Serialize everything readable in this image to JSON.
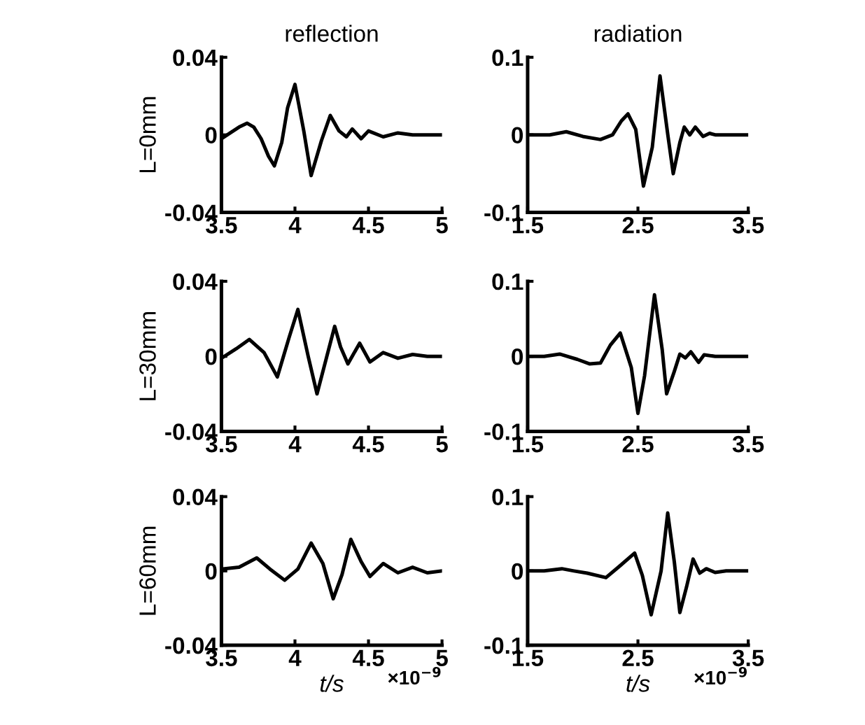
{
  "chart_data": [
    {
      "type": "line",
      "title": "reflection",
      "ylabel": "L=0mm",
      "xlim": [
        3.5,
        5
      ],
      "xticks": [
        3.5,
        4,
        4.5,
        5
      ],
      "ylim": [
        -0.04,
        0.04
      ],
      "yticks": [
        -0.04,
        0,
        0.04
      ],
      "grid": false,
      "series": [
        {
          "color": "#000000",
          "x": [
            3.5,
            3.56,
            3.62,
            3.675,
            3.72,
            3.77,
            3.82,
            3.86,
            3.91,
            3.95,
            4.0,
            4.06,
            4.11,
            4.18,
            4.24,
            4.3,
            4.35,
            4.39,
            4.45,
            4.5,
            4.6,
            4.7,
            4.8,
            4.9,
            5.0
          ],
          "values": [
            -0.002,
            0.001,
            0.004,
            0.006,
            0.004,
            -0.002,
            -0.011,
            -0.016,
            -0.004,
            0.014,
            0.026,
            0.002,
            -0.021,
            -0.003,
            0.01,
            0.002,
            -0.001,
            0.003,
            -0.002,
            0.002,
            -0.001,
            0.001,
            0,
            0,
            0
          ]
        }
      ]
    },
    {
      "type": "line",
      "title": "radiation",
      "xlim": [
        1.5,
        3.5
      ],
      "xticks": [
        1.5,
        2.5,
        3.5
      ],
      "ylim": [
        -0.1,
        0.1
      ],
      "yticks": [
        -0.1,
        0,
        0.1
      ],
      "grid": false,
      "series": [
        {
          "color": "#000000",
          "x": [
            1.5,
            1.7,
            1.85,
            2.0,
            2.16,
            2.27,
            2.35,
            2.41,
            2.48,
            2.55,
            2.63,
            2.7,
            2.77,
            2.82,
            2.88,
            2.92,
            2.97,
            3.02,
            3.09,
            3.15,
            3.2,
            3.3,
            3.5
          ],
          "values": [
            0,
            0,
            0.004,
            -0.002,
            -0.006,
            0,
            0.018,
            0.027,
            0.007,
            -0.066,
            -0.016,
            0.076,
            0.001,
            -0.05,
            -0.01,
            0.01,
            0,
            0.01,
            -0.002,
            0.002,
            0,
            0,
            0
          ]
        }
      ]
    },
    {
      "type": "line",
      "ylabel": "L=30mm",
      "xlim": [
        3.5,
        5
      ],
      "xticks": [
        3.5,
        4,
        4.5,
        5
      ],
      "ylim": [
        -0.04,
        0.04
      ],
      "yticks": [
        -0.04,
        0,
        0.04
      ],
      "grid": false,
      "series": [
        {
          "color": "#000000",
          "x": [
            3.5,
            3.6,
            3.69,
            3.79,
            3.88,
            3.96,
            4.02,
            4.09,
            4.15,
            4.21,
            4.27,
            4.31,
            4.36,
            4.44,
            4.51,
            4.6,
            4.7,
            4.8,
            4.9,
            5.0
          ],
          "values": [
            -0.001,
            0.004,
            0.009,
            0.002,
            -0.011,
            0.01,
            0.025,
            0.0,
            -0.02,
            -0.002,
            0.016,
            0.005,
            -0.004,
            0.007,
            -0.003,
            0.002,
            -0.001,
            0.001,
            0,
            0
          ]
        }
      ]
    },
    {
      "type": "line",
      "xlim": [
        1.5,
        3.5
      ],
      "xticks": [
        1.5,
        2.5,
        3.5
      ],
      "ylim": [
        -0.1,
        0.1
      ],
      "yticks": [
        -0.1,
        0,
        0.1
      ],
      "grid": false,
      "series": [
        {
          "color": "#000000",
          "x": [
            1.5,
            1.65,
            1.79,
            1.95,
            2.06,
            2.16,
            2.25,
            2.34,
            2.44,
            2.5,
            2.56,
            2.65,
            2.72,
            2.76,
            2.83,
            2.88,
            2.93,
            2.98,
            3.05,
            3.1,
            3.2,
            3.3,
            3.5
          ],
          "values": [
            0,
            0,
            0.003,
            -0.004,
            -0.01,
            -0.009,
            0.015,
            0.031,
            -0.015,
            -0.076,
            -0.026,
            0.082,
            0.009,
            -0.05,
            -0.02,
            0.003,
            -0.002,
            0.006,
            -0.008,
            0.002,
            0,
            0,
            0
          ]
        }
      ]
    },
    {
      "type": "line",
      "ylabel": "L=60mm",
      "xlabel": "t/s",
      "annotations": [
        "×10$^{−9}$"
      ],
      "xlim": [
        3.5,
        5
      ],
      "xticks": [
        3.5,
        4,
        4.5,
        5
      ],
      "ylim": [
        -0.04,
        0.04
      ],
      "yticks": [
        -0.04,
        0,
        0.04
      ],
      "grid": false,
      "series": [
        {
          "color": "#000000",
          "x": [
            3.5,
            3.62,
            3.74,
            3.83,
            3.93,
            4.02,
            4.11,
            4.19,
            4.26,
            4.32,
            4.38,
            4.45,
            4.51,
            4.6,
            4.7,
            4.8,
            4.9,
            5.0
          ],
          "values": [
            0.001,
            0.002,
            0.007,
            0.001,
            -0.005,
            0.001,
            0.015,
            0.004,
            -0.015,
            -0.002,
            0.017,
            0.005,
            -0.003,
            0.004,
            -0.001,
            0.002,
            -0.001,
            0
          ]
        }
      ]
    },
    {
      "type": "line",
      "xlabel": "t/s",
      "annotations": [
        "×10$^{−9}$"
      ],
      "xlim": [
        1.5,
        3.5
      ],
      "xticks": [
        1.5,
        2.5,
        3.5
      ],
      "ylim": [
        -0.1,
        0.1
      ],
      "yticks": [
        -0.1,
        0,
        0.1
      ],
      "grid": false,
      "series": [
        {
          "color": "#000000",
          "x": [
            1.5,
            1.65,
            1.81,
            1.92,
            2.04,
            2.21,
            2.33,
            2.47,
            2.54,
            2.62,
            2.71,
            2.77,
            2.83,
            2.88,
            2.94,
            3.0,
            3.06,
            3.12,
            3.2,
            3.3,
            3.5
          ],
          "values": [
            0,
            0,
            0.003,
            0,
            -0.003,
            -0.009,
            0.006,
            0.024,
            -0.006,
            -0.059,
            0,
            0.078,
            0.012,
            -0.056,
            -0.022,
            0.016,
            -0.003,
            0.003,
            -0.002,
            0,
            0
          ]
        }
      ]
    }
  ]
}
